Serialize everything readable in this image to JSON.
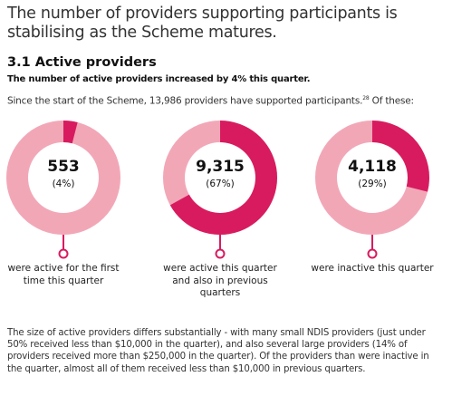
{
  "headline": "The number of providers supporting participants is stabilising as the Scheme matures.",
  "section": {
    "title": "3.1 Active providers",
    "subtitle": "The number of active providers increased by 4% this quarter."
  },
  "intro": {
    "text": "Since the start of the Scheme, 13,986 providers have supported participants.",
    "footnote": "28",
    "suffix": " Of these:"
  },
  "colors": {
    "accent": "#d81b5f",
    "light": "#f2a7b7",
    "connector": "#d81b5f"
  },
  "donuts": [
    {
      "value": "553",
      "pct": "(4%)",
      "fraction": 0.04,
      "caption": "were active for the first time this quarter"
    },
    {
      "value": "9,315",
      "pct": "(67%)",
      "fraction": 0.67,
      "caption": "were active this quarter and also in previous quarters"
    },
    {
      "value": "4,118",
      "pct": "(29%)",
      "fraction": 0.29,
      "caption": "were inactive this quarter"
    }
  ],
  "footer": "The size of active providers differs substantially - with many small NDIS providers (just under 50% received less than $10,000 in the quarter), and also several large providers (14% of providers received more than $250,000 in the quarter). Of the providers than were inactive in the quarter, almost all of them received less than $10,000 in previous quarters."
}
